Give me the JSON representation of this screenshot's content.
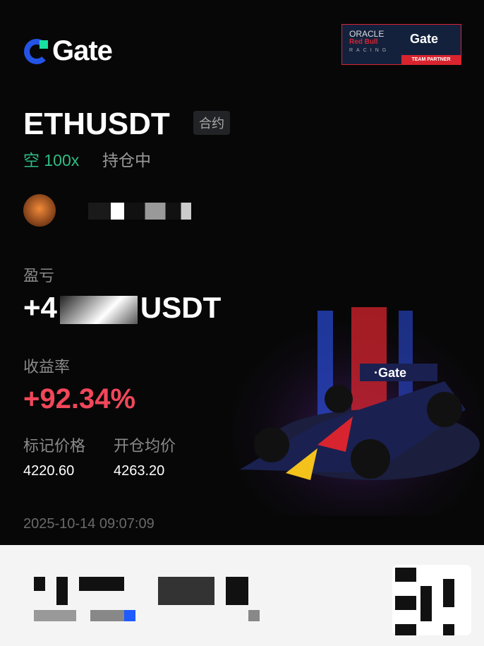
{
  "brand": {
    "logo_text": "Gate",
    "partner_badge": {
      "line1": "ORACLE",
      "line2": "Red Bull",
      "line3": "RACING",
      "brand": "Gate",
      "label": "TEAM PARTNER"
    }
  },
  "position": {
    "pair": "ETHUSDT",
    "type_tag": "合约",
    "side": "空 100x",
    "status": "持仓中"
  },
  "pnl": {
    "label": "盈亏",
    "prefix": "+4",
    "suffix": "USDT"
  },
  "roi": {
    "label": "收益率",
    "value": "+92.34%"
  },
  "prices": {
    "mark_label": "标记价格",
    "mark_value": "4220.60",
    "entry_label": "开仓均价",
    "entry_value": "4263.20"
  },
  "timestamp": "2025-10-14 09:07:09",
  "colors": {
    "profit": "#f0475a",
    "short": "#2fbd85",
    "brand": "#2354e6"
  }
}
